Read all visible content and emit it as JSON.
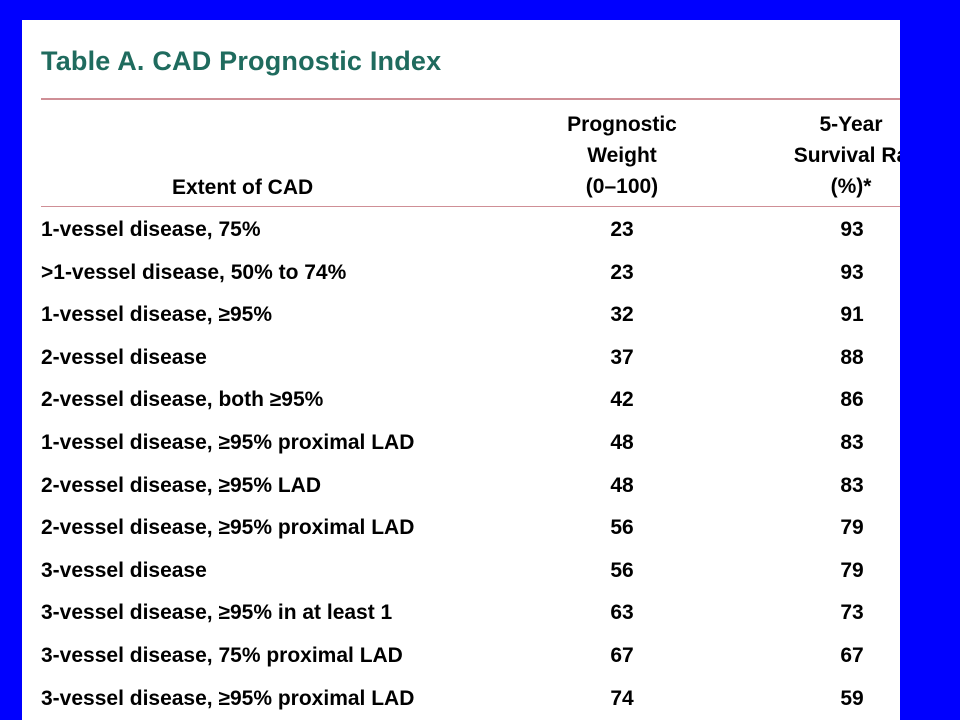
{
  "table": {
    "title": "Table A. CAD Prognostic Index",
    "headers": {
      "extent": "Extent of CAD",
      "weight": [
        "Prognostic",
        "Weight",
        "(0–100)"
      ],
      "survival": [
        "5-Year",
        "Survival Ra",
        "(%)*"
      ]
    },
    "rows": [
      {
        "extent": "1-vessel disease, 75%",
        "weight": "23",
        "survival": "93"
      },
      {
        "extent": ">1-vessel disease, 50% to 74%",
        "weight": "23",
        "survival": "93"
      },
      {
        "extent": "1-vessel disease, ≥95%",
        "weight": "32",
        "survival": "91"
      },
      {
        "extent": "2-vessel disease",
        "weight": "37",
        "survival": "88"
      },
      {
        "extent": "2-vessel disease, both ≥95%",
        "weight": "42",
        "survival": "86"
      },
      {
        "extent": "1-vessel disease, ≥95% proximal LAD",
        "weight": "48",
        "survival": "83"
      },
      {
        "extent": "2-vessel disease, ≥95% LAD",
        "weight": "48",
        "survival": "83"
      },
      {
        "extent": "2-vessel disease, ≥95% proximal LAD",
        "weight": "56",
        "survival": "79"
      },
      {
        "extent": "3-vessel disease",
        "weight": "56",
        "survival": "79"
      },
      {
        "extent": "3-vessel disease, ≥95% in at least 1",
        "weight": "63",
        "survival": "73"
      },
      {
        "extent": "3-vessel disease, 75% proximal LAD",
        "weight": "67",
        "survival": "67"
      },
      {
        "extent": "3-vessel disease, ≥95% proximal LAD",
        "weight": "74",
        "survival": "59"
      }
    ]
  },
  "colors": {
    "slide_background": "#0000ff",
    "title": "#1f6b5e",
    "rule": "#cf8f96"
  }
}
